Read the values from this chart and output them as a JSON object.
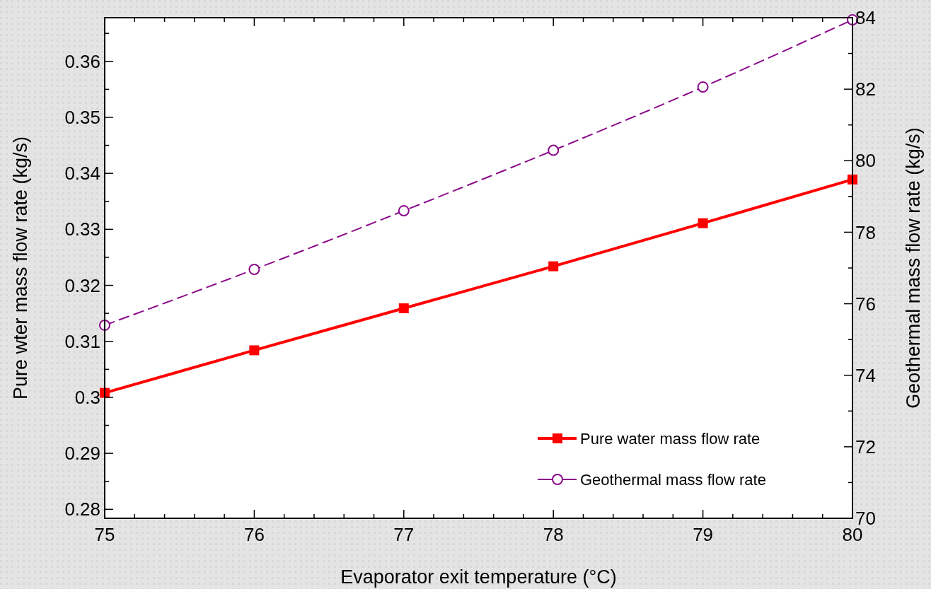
{
  "chart_data": {
    "type": "line",
    "xlabel": "Evaporator exit temperature (°C)",
    "ylabel": "Pure wter mass flow rate (kg/s)",
    "y2label": "Geothermal mass flow rate (kg/s)",
    "x": [
      75,
      76,
      77,
      78,
      79,
      80
    ],
    "xlim": [
      75,
      80
    ],
    "xticks": [
      75,
      {
        "value": 75.2,
        "label": null
      },
      {
        "value": 75.4,
        "label": null
      },
      {
        "value": 75.6,
        "label": null
      },
      {
        "value": 75.8,
        "label": null
      },
      76,
      {
        "value": 76.2,
        "label": null
      },
      {
        "value": 76.4,
        "label": null
      },
      {
        "value": 76.6,
        "label": null
      },
      {
        "value": 76.8,
        "label": null
      },
      77,
      {
        "value": 77.2,
        "label": null
      },
      {
        "value": 77.4,
        "label": null
      },
      {
        "value": 77.6,
        "label": null
      },
      {
        "value": 77.8,
        "label": null
      },
      78,
      {
        "value": 78.2,
        "label": null
      },
      {
        "value": 78.4,
        "label": null
      },
      {
        "value": 78.6,
        "label": null
      },
      {
        "value": 78.8,
        "label": null
      },
      79,
      {
        "value": 79.2,
        "label": null
      },
      {
        "value": 79.4,
        "label": null
      },
      {
        "value": 79.6,
        "label": null
      },
      {
        "value": 79.8,
        "label": null
      },
      80
    ],
    "ylim": [
      0.2784,
      0.3678
    ],
    "yticks": [
      0.28,
      {
        "value": 0.285,
        "label": null
      },
      0.29,
      {
        "value": 0.295,
        "label": null
      },
      0.3,
      {
        "value": 0.305,
        "label": null
      },
      0.31,
      {
        "value": 0.315,
        "label": null
      },
      0.32,
      {
        "value": 0.325,
        "label": null
      },
      0.33,
      {
        "value": 0.335,
        "label": null
      },
      0.34,
      {
        "value": 0.345,
        "label": null
      },
      0.35,
      {
        "value": 0.355,
        "label": null
      },
      0.36,
      {
        "value": 0.365,
        "label": null
      }
    ],
    "y2lim": [
      70,
      84
    ],
    "y2ticks": [
      70,
      {
        "value": 71,
        "label": null
      },
      72,
      {
        "value": 73,
        "label": null
      },
      74,
      {
        "value": 75,
        "label": null
      },
      76,
      {
        "value": 77,
        "label": null
      },
      78,
      {
        "value": 79,
        "label": null
      },
      80,
      {
        "value": 81,
        "label": null
      },
      82,
      {
        "value": 83,
        "label": null
      },
      84
    ],
    "legend": "bottom right",
    "series": [
      {
        "name": "Pure water mass flow rate",
        "color": "#ff0000",
        "marker": "square",
        "line_style": "solid",
        "values": [
          0.3008,
          0.3084,
          0.3159,
          0.3234,
          0.3311,
          0.3389
        ]
      },
      {
        "name": "Geothermal mass flow rate",
        "color": "#8b0a8b",
        "marker": "circle",
        "line_style": "dashed",
        "axis": "y2",
        "values": [
          75.4,
          76.96,
          78.6,
          80.29,
          82.06,
          83.94
        ]
      }
    ]
  }
}
